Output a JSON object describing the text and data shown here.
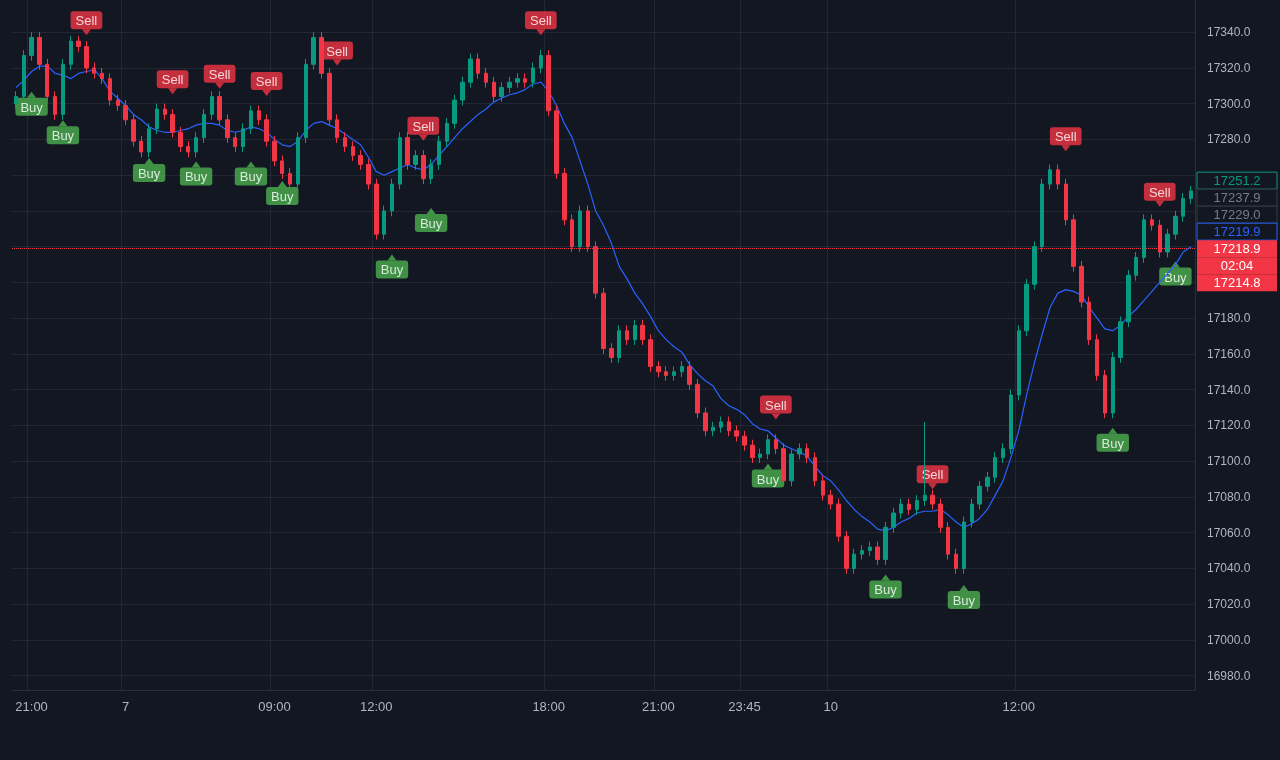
{
  "chart_data": {
    "type": "candlestick",
    "grid": true,
    "categories": [
      null,
      null,
      "21:00",
      null,
      null,
      null,
      null,
      null,
      null,
      null,
      null,
      null,
      null,
      null,
      "7",
      null,
      null,
      null,
      null,
      null,
      null,
      null,
      null,
      null,
      null,
      null,
      null,
      null,
      null,
      null,
      null,
      null,
      null,
      "09:00",
      null,
      null,
      null,
      null,
      null,
      null,
      null,
      null,
      null,
      null,
      null,
      null,
      "12:00",
      null,
      null,
      null,
      null,
      null,
      null,
      null,
      null,
      null,
      null,
      null,
      null,
      null,
      null,
      null,
      null,
      null,
      null,
      null,
      null,
      null,
      "18:00",
      null,
      null,
      null,
      null,
      null,
      null,
      null,
      null,
      null,
      null,
      null,
      null,
      null,
      "21:00",
      null,
      null,
      null,
      null,
      null,
      null,
      null,
      null,
      null,
      null,
      "23:45",
      null,
      null,
      null,
      null,
      null,
      null,
      null,
      null,
      null,
      null,
      "10",
      null,
      null,
      null,
      null,
      null,
      null,
      null,
      null,
      null,
      null,
      null,
      null,
      null,
      null,
      null,
      null,
      null,
      null,
      null,
      null,
      null,
      null,
      null,
      "12:00",
      null,
      null,
      null,
      null,
      null,
      null,
      null,
      null,
      null,
      null,
      null,
      null,
      null,
      null,
      null,
      null,
      null,
      null,
      null,
      null,
      null,
      null
    ],
    "ylim": [
      16972,
      17358
    ],
    "yticks": [
      {
        "value": 16980,
        "label": "16980.0"
      },
      {
        "value": 17000,
        "label": "17000.0"
      },
      {
        "value": 17020,
        "label": "17020.0"
      },
      {
        "value": 17040,
        "label": "17040.0"
      },
      {
        "value": 17060,
        "label": "17060.0"
      },
      {
        "value": 17080,
        "label": "17080.0"
      },
      {
        "value": 17100,
        "label": "17100.0"
      },
      {
        "value": 17120,
        "label": "17120.0"
      },
      {
        "value": 17140,
        "label": "17140.0"
      },
      {
        "value": 17160,
        "label": "17160.0"
      },
      {
        "value": 17180,
        "label": "17180.0"
      },
      {
        "value": 17200,
        "label": null
      },
      {
        "value": 17220,
        "label": null
      },
      {
        "value": 17240,
        "label": null
      },
      {
        "value": 17260,
        "label": null
      },
      {
        "value": 17280,
        "label": "17280.0"
      },
      {
        "value": 17300,
        "label": "17300.0"
      },
      {
        "value": 17320,
        "label": "17320.0"
      },
      {
        "value": 17340,
        "label": "17340.0"
      }
    ],
    "ref_lines": [
      {
        "axis": "y",
        "value": 17218.9,
        "label": "17218.9",
        "color": "#f23645",
        "line_style": "dotted"
      }
    ],
    "annotations": [
      "17237.9",
      "17229.0",
      "02:04",
      "17214.8"
    ],
    "series": [
      {
        "type": "line",
        "color": "#2962ff",
        "line_style": "solid",
        "values": [
          17309,
          17313,
          17318,
          17321,
          17321,
          17317,
          17316,
          17314,
          17317,
          17318,
          17319,
          17314,
          17307,
          17303,
          17299,
          17294,
          17291,
          17287,
          17285,
          17284,
          17284,
          17285,
          17286,
          17288,
          17289,
          17289,
          17288,
          17285,
          17284,
          17285,
          17287,
          17286,
          17284,
          17280,
          17277,
          17276,
          17279,
          17285,
          17289,
          17290,
          17288,
          17286,
          17283,
          17280,
          17277,
          17270,
          17262,
          17260,
          17262,
          17264,
          17266,
          17264,
          17263,
          17266,
          17271,
          17276,
          17281,
          17286,
          17290,
          17294,
          17297,
          17301,
          17303,
          17305,
          17306,
          17308,
          17311,
          17312,
          17307,
          17299,
          17289,
          17281,
          17268,
          17255,
          17240,
          17232,
          17222,
          17209,
          17202,
          17194,
          17188,
          17181,
          17173,
          17168,
          17164,
          17161,
          17154,
          17149,
          17145,
          17142,
          17135,
          17131,
          17129,
          17126,
          17121,
          17118,
          17117,
          17113,
          17109,
          17107,
          17105,
          17103,
          17097,
          17092,
          17089,
          17084,
          17078,
          17073,
          17069,
          17066,
          17062,
          17061,
          17063,
          17066,
          17068,
          17071,
          17072,
          17072,
          17073,
          17070,
          17066,
          17063,
          17065,
          17068,
          17073,
          17081,
          17089,
          17102,
          17117,
          17137,
          17155,
          17171,
          17186,
          17194,
          17196,
          17195,
          17193,
          17186,
          17180,
          17174,
          17173,
          17176,
          17181,
          17185,
          17190,
          17195,
          17200,
          17205,
          17210,
          17217,
          17219.9
        ],
        "value_labels": [
          null,
          null,
          null,
          null,
          null,
          null,
          null,
          null,
          null,
          null,
          null,
          null,
          null,
          null,
          null,
          null,
          null,
          null,
          null,
          null,
          null,
          null,
          null,
          null,
          null,
          null,
          null,
          null,
          null,
          null,
          null,
          null,
          null,
          null,
          null,
          null,
          null,
          null,
          null,
          null,
          null,
          null,
          null,
          null,
          null,
          null,
          null,
          null,
          null,
          null,
          null,
          null,
          null,
          null,
          null,
          null,
          null,
          null,
          null,
          null,
          null,
          null,
          null,
          null,
          null,
          null,
          null,
          null,
          null,
          null,
          null,
          null,
          null,
          null,
          null,
          null,
          null,
          null,
          null,
          null,
          null,
          null,
          null,
          null,
          null,
          null,
          null,
          null,
          null,
          null,
          null,
          null,
          null,
          null,
          null,
          null,
          null,
          null,
          null,
          null,
          null,
          null,
          null,
          null,
          null,
          null,
          null,
          null,
          null,
          null,
          null,
          null,
          null,
          null,
          null,
          null,
          null,
          null,
          null,
          null,
          null,
          null,
          null,
          null,
          null,
          null,
          null,
          null,
          null,
          null,
          null,
          null,
          null,
          null,
          null,
          null,
          null,
          null,
          null,
          null,
          null,
          null,
          null,
          null,
          null,
          null,
          null,
          null,
          null,
          null,
          "17219.9"
        ]
      },
      {
        "ohlc": [
          [
            17300,
            17307,
            17297,
            17304
          ],
          [
            17304,
            17330,
            17301,
            17327
          ],
          [
            17327,
            17340,
            17324,
            17337
          ],
          [
            17337,
            17340,
            17319,
            17322
          ],
          [
            17322,
            17325,
            17301,
            17304
          ],
          [
            17304,
            17307,
            17291,
            17294
          ],
          [
            17294,
            17325,
            17291,
            17322
          ],
          [
            17322,
            17338,
            17319,
            17335
          ],
          [
            17335,
            17338,
            17329,
            17332
          ],
          [
            17332,
            17335,
            17317,
            17320
          ],
          [
            17320,
            17323,
            17314,
            17317
          ],
          [
            17317,
            17320,
            17311,
            17314
          ],
          [
            17314,
            17317,
            17299,
            17302
          ],
          [
            17302,
            17305,
            17296,
            17299
          ],
          [
            17299,
            17302,
            17288,
            17291
          ],
          [
            17291,
            17294,
            17276,
            17279
          ],
          [
            17279,
            17282,
            17270,
            17273
          ],
          [
            17273,
            17289,
            17270,
            17286
          ],
          [
            17286,
            17300,
            17283,
            17297
          ],
          [
            17297,
            17300,
            17291,
            17294
          ],
          [
            17294,
            17297,
            17281,
            17284
          ],
          [
            17284,
            17287,
            17273,
            17276
          ],
          [
            17276,
            17279,
            17270,
            17273
          ],
          [
            17273,
            17284,
            17270,
            17281
          ],
          [
            17281,
            17297,
            17278,
            17294
          ],
          [
            17294,
            17307,
            17291,
            17304
          ],
          [
            17304,
            17307,
            17288,
            17291
          ],
          [
            17291,
            17294,
            17278,
            17281
          ],
          [
            17281,
            17284,
            17273,
            17276
          ],
          [
            17276,
            17289,
            17273,
            17286
          ],
          [
            17286,
            17299,
            17283,
            17296
          ],
          [
            17296,
            17299,
            17288,
            17291
          ],
          [
            17291,
            17294,
            17276,
            17279
          ],
          [
            17279,
            17282,
            17265,
            17268
          ],
          [
            17268,
            17271,
            17258,
            17261
          ],
          [
            17261,
            17264,
            17252,
            17255
          ],
          [
            17255,
            17284,
            17252,
            17281
          ],
          [
            17281,
            17325,
            17278,
            17322
          ],
          [
            17322,
            17340,
            17319,
            17337
          ],
          [
            17337,
            17340,
            17314,
            17317
          ],
          [
            17317,
            17320,
            17288,
            17291
          ],
          [
            17291,
            17294,
            17278,
            17281
          ],
          [
            17281,
            17284,
            17273,
            17276
          ],
          [
            17276,
            17279,
            17268,
            17271
          ],
          [
            17271,
            17274,
            17263,
            17266
          ],
          [
            17266,
            17269,
            17252,
            17255
          ],
          [
            17255,
            17258,
            17224,
            17227
          ],
          [
            17227,
            17243,
            17224,
            17240
          ],
          [
            17240,
            17258,
            17237,
            17255
          ],
          [
            17255,
            17284,
            17252,
            17281
          ],
          [
            17281,
            17284,
            17263,
            17266
          ],
          [
            17266,
            17274,
            17263,
            17271
          ],
          [
            17271,
            17274,
            17255,
            17258
          ],
          [
            17258,
            17269,
            17255,
            17266
          ],
          [
            17266,
            17282,
            17263,
            17279
          ],
          [
            17279,
            17292,
            17276,
            17289
          ],
          [
            17289,
            17305,
            17286,
            17302
          ],
          [
            17302,
            17315,
            17299,
            17312
          ],
          [
            17312,
            17328,
            17309,
            17325
          ],
          [
            17325,
            17328,
            17314,
            17317
          ],
          [
            17317,
            17320,
            17309,
            17312
          ],
          [
            17312,
            17315,
            17301,
            17304
          ],
          [
            17304,
            17312,
            17301,
            17309
          ],
          [
            17309,
            17315,
            17306,
            17312
          ],
          [
            17312,
            17317,
            17309,
            17314
          ],
          [
            17314,
            17317,
            17309,
            17312
          ],
          [
            17312,
            17323,
            17309,
            17320
          ],
          [
            17320,
            17330,
            17317,
            17327
          ],
          [
            17327,
            17330,
            17293,
            17296
          ],
          [
            17296,
            17299,
            17258,
            17261
          ],
          [
            17261,
            17264,
            17232,
            17235
          ],
          [
            17235,
            17238,
            17217,
            17220
          ],
          [
            17220,
            17243,
            17217,
            17240
          ],
          [
            17240,
            17243,
            17217,
            17220
          ],
          [
            17220,
            17223,
            17191,
            17194
          ],
          [
            17194,
            17197,
            17160,
            17163
          ],
          [
            17163,
            17166,
            17155,
            17158
          ],
          [
            17158,
            17176,
            17155,
            17173
          ],
          [
            17173,
            17176,
            17165,
            17168
          ],
          [
            17168,
            17179,
            17165,
            17176
          ],
          [
            17176,
            17179,
            17165,
            17168
          ],
          [
            17168,
            17171,
            17150,
            17153
          ],
          [
            17153,
            17156,
            17147,
            17150
          ],
          [
            17150,
            17153,
            17145,
            17148
          ],
          [
            17148,
            17153,
            17145,
            17150
          ],
          [
            17150,
            17156,
            17147,
            17153
          ],
          [
            17153,
            17156,
            17140,
            17143
          ],
          [
            17143,
            17146,
            17124,
            17127
          ],
          [
            17127,
            17130,
            17114,
            17117
          ],
          [
            17117,
            17122,
            17114,
            17119
          ],
          [
            17119,
            17125,
            17116,
            17122
          ],
          [
            17122,
            17125,
            17114,
            17117
          ],
          [
            17117,
            17120,
            17111,
            17114
          ],
          [
            17114,
            17117,
            17106,
            17109
          ],
          [
            17109,
            17112,
            17099,
            17102
          ],
          [
            17102,
            17107,
            17099,
            17104
          ],
          [
            17104,
            17115,
            17101,
            17112
          ],
          [
            17112,
            17115,
            17104,
            17107
          ],
          [
            17107,
            17110,
            17086,
            17089
          ],
          [
            17089,
            17107,
            17086,
            17104
          ],
          [
            17104,
            17110,
            17101,
            17107
          ],
          [
            17107,
            17110,
            17099,
            17102
          ],
          [
            17102,
            17105,
            17086,
            17089
          ],
          [
            17089,
            17092,
            17078,
            17081
          ],
          [
            17081,
            17084,
            17073,
            17076
          ],
          [
            17076,
            17079,
            17055,
            17058
          ],
          [
            17058,
            17061,
            17037,
            17040
          ],
          [
            17040,
            17051,
            17037,
            17048
          ],
          [
            17048,
            17053,
            17045,
            17050
          ],
          [
            17050,
            17055,
            17047,
            17052
          ],
          [
            17052,
            17055,
            17042,
            17045
          ],
          [
            17045,
            17066,
            17042,
            17063
          ],
          [
            17063,
            17074,
            17060,
            17071
          ],
          [
            17071,
            17079,
            17068,
            17076
          ],
          [
            17076,
            17079,
            17070,
            17073
          ],
          [
            17073,
            17081,
            17070,
            17078
          ],
          [
            17078,
            17122,
            17075,
            17081
          ],
          [
            17081,
            17084,
            17073,
            17076
          ],
          [
            17076,
            17079,
            17060,
            17063
          ],
          [
            17063,
            17066,
            17045,
            17048
          ],
          [
            17048,
            17051,
            17037,
            17040
          ],
          [
            17040,
            17069,
            17037,
            17066
          ],
          [
            17066,
            17079,
            17063,
            17076
          ],
          [
            17076,
            17089,
            17073,
            17086
          ],
          [
            17086,
            17094,
            17083,
            17091
          ],
          [
            17091,
            17105,
            17088,
            17102
          ],
          [
            17102,
            17110,
            17099,
            17107
          ],
          [
            17107,
            17140,
            17104,
            17137
          ],
          [
            17137,
            17176,
            17134,
            17173
          ],
          [
            17173,
            17202,
            17170,
            17199
          ],
          [
            17199,
            17223,
            17196,
            17220
          ],
          [
            17220,
            17258,
            17217,
            17255
          ],
          [
            17255,
            17266,
            17252,
            17263
          ],
          [
            17263,
            17266,
            17252,
            17255
          ],
          [
            17255,
            17258,
            17232,
            17235
          ],
          [
            17235,
            17238,
            17206,
            17209
          ],
          [
            17209,
            17212,
            17186,
            17189
          ],
          [
            17189,
            17192,
            17165,
            17168
          ],
          [
            17168,
            17171,
            17145,
            17148
          ],
          [
            17148,
            17151,
            17124,
            17127
          ],
          [
            17127,
            17161,
            17124,
            17158
          ],
          [
            17158,
            17181,
            17155,
            17178
          ],
          [
            17178,
            17207,
            17175,
            17204
          ],
          [
            17204,
            17217,
            17201,
            17214
          ],
          [
            17214,
            17238,
            17211,
            17235
          ],
          [
            17235,
            17238,
            17229,
            17232
          ],
          [
            17232,
            17235,
            17214,
            17217
          ],
          [
            17217,
            17230,
            17214,
            17227
          ],
          [
            17227,
            17240,
            17224,
            17237
          ],
          [
            17237,
            17250,
            17234,
            17247
          ],
          [
            17247,
            17254,
            17244,
            17251.2
          ]
        ],
        "colors": [
          "#089981",
          "#089981",
          "#089981",
          "#f23645",
          "#f23645",
          "#f23645",
          "#089981",
          "#089981",
          "#f23645",
          "#f23645",
          "#f23645",
          "#f23645",
          "#f23645",
          "#f23645",
          "#f23645",
          "#f23645",
          "#f23645",
          "#089981",
          "#089981",
          "#f23645",
          "#f23645",
          "#f23645",
          "#f23645",
          "#089981",
          "#089981",
          "#089981",
          "#f23645",
          "#f23645",
          "#f23645",
          "#089981",
          "#089981",
          "#f23645",
          "#f23645",
          "#f23645",
          "#f23645",
          "#f23645",
          "#089981",
          "#089981",
          "#089981",
          "#f23645",
          "#f23645",
          "#f23645",
          "#f23645",
          "#f23645",
          "#f23645",
          "#f23645",
          "#f23645",
          "#089981",
          "#089981",
          "#089981",
          "#f23645",
          "#089981",
          "#f23645",
          "#089981",
          "#089981",
          "#089981",
          "#089981",
          "#089981",
          "#089981",
          "#f23645",
          "#f23645",
          "#f23645",
          "#089981",
          "#089981",
          "#089981",
          "#f23645",
          "#089981",
          "#089981",
          "#f23645",
          "#f23645",
          "#f23645",
          "#f23645",
          "#089981",
          "#f23645",
          "#f23645",
          "#f23645",
          "#f23645",
          "#089981",
          "#f23645",
          "#089981",
          "#f23645",
          "#f23645",
          "#f23645",
          "#f23645",
          "#089981",
          "#089981",
          "#f23645",
          "#f23645",
          "#f23645",
          "#089981",
          "#089981",
          "#f23645",
          "#f23645",
          "#f23645",
          "#f23645",
          "#089981",
          "#089981",
          "#f23645",
          "#f23645",
          "#089981",
          "#089981",
          "#f23645",
          "#f23645",
          "#f23645",
          "#f23645",
          "#f23645",
          "#f23645",
          "#089981",
          "#089981",
          "#089981",
          "#f23645",
          "#089981",
          "#089981",
          "#089981",
          "#f23645",
          "#089981",
          "#089981",
          "#f23645",
          "#f23645",
          "#f23645",
          "#f23645",
          "#089981",
          "#089981",
          "#089981",
          "#089981",
          "#089981",
          "#089981",
          "#089981",
          "#089981",
          "#089981",
          "#089981",
          "#089981",
          "#089981",
          "#f23645",
          "#f23645",
          "#f23645",
          "#f23645",
          "#f23645",
          "#f23645",
          "#f23645",
          "#089981",
          "#089981",
          "#089981",
          "#089981",
          "#089981",
          "#f23645",
          "#f23645",
          "#089981",
          "#089981",
          "#089981",
          "#089981"
        ],
        "value_labels": [
          null,
          null,
          null,
          null,
          null,
          null,
          null,
          null,
          null,
          null,
          null,
          null,
          null,
          null,
          null,
          null,
          null,
          null,
          null,
          null,
          null,
          null,
          null,
          null,
          null,
          null,
          null,
          null,
          null,
          null,
          null,
          null,
          null,
          null,
          null,
          null,
          null,
          null,
          null,
          null,
          null,
          null,
          null,
          null,
          null,
          null,
          null,
          null,
          null,
          null,
          null,
          null,
          null,
          null,
          null,
          null,
          null,
          null,
          null,
          null,
          null,
          null,
          null,
          null,
          null,
          null,
          null,
          null,
          null,
          null,
          null,
          null,
          null,
          null,
          null,
          null,
          null,
          null,
          null,
          null,
          null,
          null,
          null,
          null,
          null,
          null,
          null,
          null,
          null,
          null,
          null,
          null,
          null,
          null,
          null,
          null,
          null,
          null,
          null,
          null,
          null,
          null,
          null,
          null,
          null,
          null,
          null,
          null,
          null,
          null,
          null,
          null,
          null,
          null,
          null,
          null,
          null,
          null,
          null,
          null,
          null,
          null,
          null,
          null,
          null,
          null,
          null,
          null,
          null,
          null,
          null,
          null,
          null,
          null,
          null,
          null,
          null,
          null,
          null,
          null,
          null,
          null,
          null,
          null,
          null,
          null,
          null,
          null,
          null,
          null,
          "17251.2"
        ]
      },
      {
        "type": "scatter",
        "color": "#4caf50",
        "marker": "triangle",
        "values": [
          null,
          null,
          17305,
          null,
          null,
          null,
          17289,
          null,
          null,
          null,
          null,
          null,
          null,
          null,
          null,
          null,
          null,
          17268,
          null,
          null,
          null,
          null,
          null,
          17266,
          null,
          null,
          null,
          null,
          null,
          null,
          17266,
          null,
          null,
          null,
          17255,
          null,
          null,
          null,
          null,
          null,
          null,
          null,
          null,
          null,
          null,
          null,
          null,
          null,
          17214,
          null,
          null,
          null,
          null,
          17240,
          null,
          null,
          null,
          null,
          null,
          null,
          null,
          null,
          null,
          null,
          null,
          null,
          null,
          null,
          null,
          null,
          null,
          null,
          null,
          null,
          null,
          null,
          null,
          null,
          null,
          null,
          null,
          null,
          null,
          null,
          null,
          null,
          null,
          null,
          null,
          null,
          null,
          null,
          null,
          null,
          null,
          null,
          17097,
          null,
          null,
          null,
          null,
          null,
          null,
          null,
          null,
          null,
          null,
          null,
          null,
          null,
          null,
          17035,
          null,
          null,
          null,
          null,
          null,
          null,
          null,
          null,
          null,
          17029,
          null,
          null,
          null,
          null,
          null,
          null,
          null,
          null,
          null,
          null,
          null,
          null,
          null,
          null,
          null,
          null,
          null,
          null,
          17117,
          null,
          null,
          null,
          null,
          null,
          null,
          null,
          17210,
          null,
          null
        ],
        "value_labels": [
          null,
          null,
          "Buy",
          null,
          null,
          null,
          "Buy",
          null,
          null,
          null,
          null,
          null,
          null,
          null,
          null,
          null,
          null,
          "Buy",
          null,
          null,
          null,
          null,
          null,
          "Buy",
          null,
          null,
          null,
          null,
          null,
          null,
          "Buy",
          null,
          null,
          null,
          "Buy",
          null,
          null,
          null,
          null,
          null,
          null,
          null,
          null,
          null,
          null,
          null,
          null,
          null,
          "Buy",
          null,
          null,
          null,
          null,
          "Buy",
          null,
          null,
          null,
          null,
          null,
          null,
          null,
          null,
          null,
          null,
          null,
          null,
          null,
          null,
          null,
          null,
          null,
          null,
          null,
          null,
          null,
          null,
          null,
          null,
          null,
          null,
          null,
          null,
          null,
          null,
          null,
          null,
          null,
          null,
          null,
          null,
          null,
          null,
          null,
          null,
          null,
          null,
          "Buy",
          null,
          null,
          null,
          null,
          null,
          null,
          null,
          null,
          null,
          null,
          null,
          null,
          null,
          null,
          "Buy",
          null,
          null,
          null,
          null,
          null,
          null,
          null,
          null,
          null,
          "Buy",
          null,
          null,
          null,
          null,
          null,
          null,
          null,
          null,
          null,
          null,
          null,
          null,
          null,
          null,
          null,
          null,
          null,
          null,
          "Buy",
          null,
          null,
          null,
          null,
          null,
          null,
          null,
          "Buy",
          null,
          null
        ]
      },
      {
        "type": "scatter",
        "color": "#f23645",
        "marker": "triangle",
        "values": [
          null,
          null,
          null,
          null,
          null,
          null,
          null,
          null,
          null,
          17340,
          null,
          null,
          null,
          null,
          null,
          null,
          null,
          null,
          null,
          null,
          17307,
          null,
          null,
          null,
          null,
          null,
          17310,
          null,
          null,
          null,
          null,
          null,
          17306,
          null,
          null,
          null,
          null,
          null,
          null,
          null,
          null,
          17323,
          null,
          null,
          null,
          null,
          null,
          null,
          null,
          null,
          null,
          null,
          17281,
          null,
          null,
          null,
          null,
          null,
          null,
          null,
          null,
          null,
          null,
          null,
          null,
          null,
          null,
          17340,
          null,
          null,
          null,
          null,
          null,
          null,
          null,
          null,
          null,
          null,
          null,
          null,
          null,
          null,
          null,
          null,
          null,
          null,
          null,
          null,
          null,
          null,
          null,
          null,
          null,
          null,
          null,
          null,
          null,
          17125,
          null,
          null,
          null,
          null,
          null,
          null,
          null,
          null,
          null,
          null,
          null,
          null,
          null,
          null,
          null,
          null,
          null,
          null,
          null,
          17086,
          null,
          null,
          null,
          null,
          null,
          null,
          null,
          null,
          null,
          null,
          null,
          null,
          null,
          null,
          null,
          null,
          17275,
          null,
          null,
          null,
          null,
          null,
          null,
          null,
          null,
          null,
          null,
          null,
          17244,
          null,
          null,
          null,
          null
        ],
        "value_labels": [
          null,
          null,
          null,
          null,
          null,
          null,
          null,
          null,
          null,
          "Sell",
          null,
          null,
          null,
          null,
          null,
          null,
          null,
          null,
          null,
          null,
          "Sell",
          null,
          null,
          null,
          null,
          null,
          "Sell",
          null,
          null,
          null,
          null,
          null,
          "Sell",
          null,
          null,
          null,
          null,
          null,
          null,
          null,
          null,
          "Sell",
          null,
          null,
          null,
          null,
          null,
          null,
          null,
          null,
          null,
          null,
          "Sell",
          null,
          null,
          null,
          null,
          null,
          null,
          null,
          null,
          null,
          null,
          null,
          null,
          null,
          null,
          "Sell",
          null,
          null,
          null,
          null,
          null,
          null,
          null,
          null,
          null,
          null,
          null,
          null,
          null,
          null,
          null,
          null,
          null,
          null,
          null,
          null,
          null,
          null,
          null,
          null,
          null,
          null,
          null,
          null,
          null,
          "Sell",
          null,
          null,
          null,
          null,
          null,
          null,
          null,
          null,
          null,
          null,
          null,
          null,
          null,
          null,
          null,
          null,
          null,
          null,
          null,
          "Sell",
          null,
          null,
          null,
          null,
          null,
          null,
          null,
          null,
          null,
          null,
          null,
          null,
          null,
          null,
          null,
          null,
          "Sell",
          null,
          null,
          null,
          null,
          null,
          null,
          null,
          null,
          null,
          null,
          null,
          "Sell",
          null,
          null,
          null,
          null
        ]
      }
    ]
  }
}
